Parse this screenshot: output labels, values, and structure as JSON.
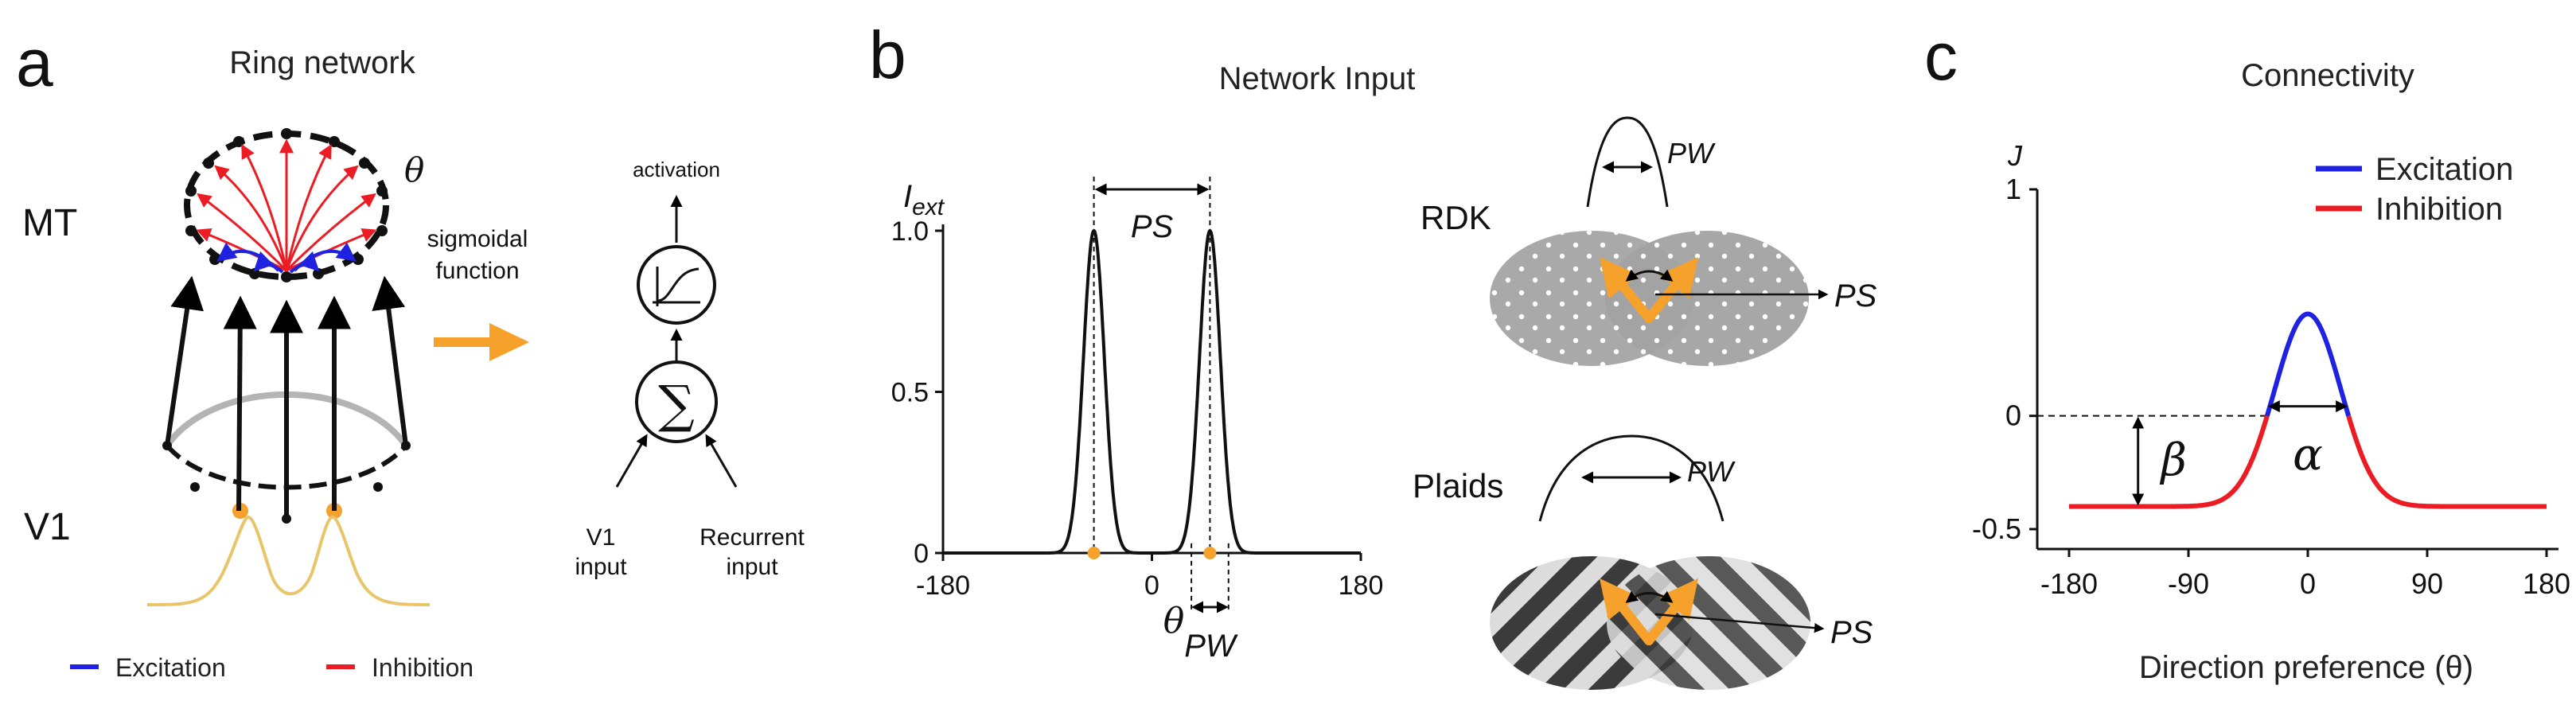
{
  "panel_a": {
    "letter": "a",
    "title": "Ring network",
    "theta": "θ",
    "mt_label": "MT",
    "v1_label": "V1",
    "activation": "activation",
    "sigmoid_line1": "sigmoidal",
    "sigmoid_line2": "function",
    "sum_symbol": "∑",
    "v1_input_line1": "V1",
    "v1_input_line2": "input",
    "recurrent_line1": "Recurrent",
    "recurrent_line2": "input",
    "legend": [
      {
        "label": "Excitation",
        "color": "#1f22e0"
      },
      {
        "label": "Inhibition",
        "color": "#ec1c24"
      }
    ]
  },
  "panel_b": {
    "letter": "b",
    "title": "Network Input",
    "ylabel_main": "I",
    "ylabel_sub": "ext",
    "xlabel": "θ",
    "ps_label": "PS",
    "pw_label": "PW",
    "rdk_label": "RDK",
    "plaids_label": "Plaids",
    "accent_color": "#f5a12b",
    "chart_data": {
      "type": "line",
      "x_ticks": [
        "-180",
        "0",
        "180"
      ],
      "y_ticks": [
        "0",
        "0.5",
        "1.0"
      ],
      "xlim": [
        -180,
        180
      ],
      "ylim": [
        0,
        1.0
      ],
      "peaks": [
        -50,
        50
      ],
      "peak_height": 1.0
    }
  },
  "panel_c": {
    "letter": "c",
    "title": "Connectivity",
    "ylabel": "J",
    "xlabel": "Direction preference (θ)",
    "alpha": "α",
    "beta": "β",
    "chart_data": {
      "type": "line",
      "x_ticks": [
        "-180",
        "-90",
        "0",
        "90",
        "180"
      ],
      "y_ticks": [
        "1",
        "0",
        "-0.5"
      ],
      "xlim": [
        -180,
        180
      ],
      "ylim": [
        -0.5,
        1
      ],
      "baseline": -0.4,
      "peak": 0.45,
      "series": [
        {
          "name": "Excitation",
          "color": "#1f22e0"
        },
        {
          "name": "Inhibition",
          "color": "#ec1c24"
        }
      ]
    }
  }
}
